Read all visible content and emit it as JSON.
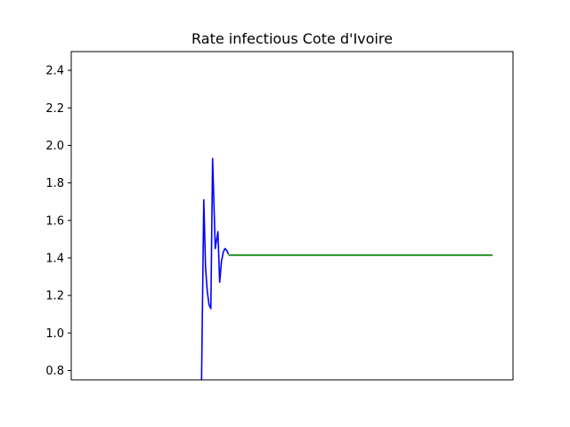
{
  "chart_data": {
    "type": "line",
    "title": "Rate infectious Cote d'Ivoire",
    "xlabel": "",
    "ylabel": "",
    "x_axis_visible": false,
    "ylim": [
      0.75,
      2.5
    ],
    "y_ticks": [
      0.8,
      1.0,
      1.2,
      1.4,
      1.6,
      1.8,
      2.0,
      2.2,
      2.4
    ],
    "y_tick_labels": [
      "0.8",
      "1.0",
      "1.2",
      "1.4",
      "1.6",
      "1.8",
      "2.0",
      "2.2",
      "2.4"
    ],
    "grid": false,
    "legend": "none",
    "xlim": [
      0,
      100
    ],
    "series": [
      {
        "color": "#0000ff",
        "x": [
          29.5,
          30.0,
          30.4,
          30.8,
          31.2,
          31.6,
          32.0,
          32.6,
          33.2,
          33.6,
          34.0,
          34.4,
          34.8,
          35.2,
          35.6
        ],
        "y": [
          0.75,
          1.71,
          1.35,
          1.22,
          1.15,
          1.13,
          1.93,
          1.45,
          1.54,
          1.27,
          1.38,
          1.43,
          1.45,
          1.44,
          1.42
        ]
      },
      {
        "color": "#008000",
        "x": [
          35.6,
          95.4
        ],
        "y": [
          1.415,
          1.415
        ]
      }
    ]
  }
}
